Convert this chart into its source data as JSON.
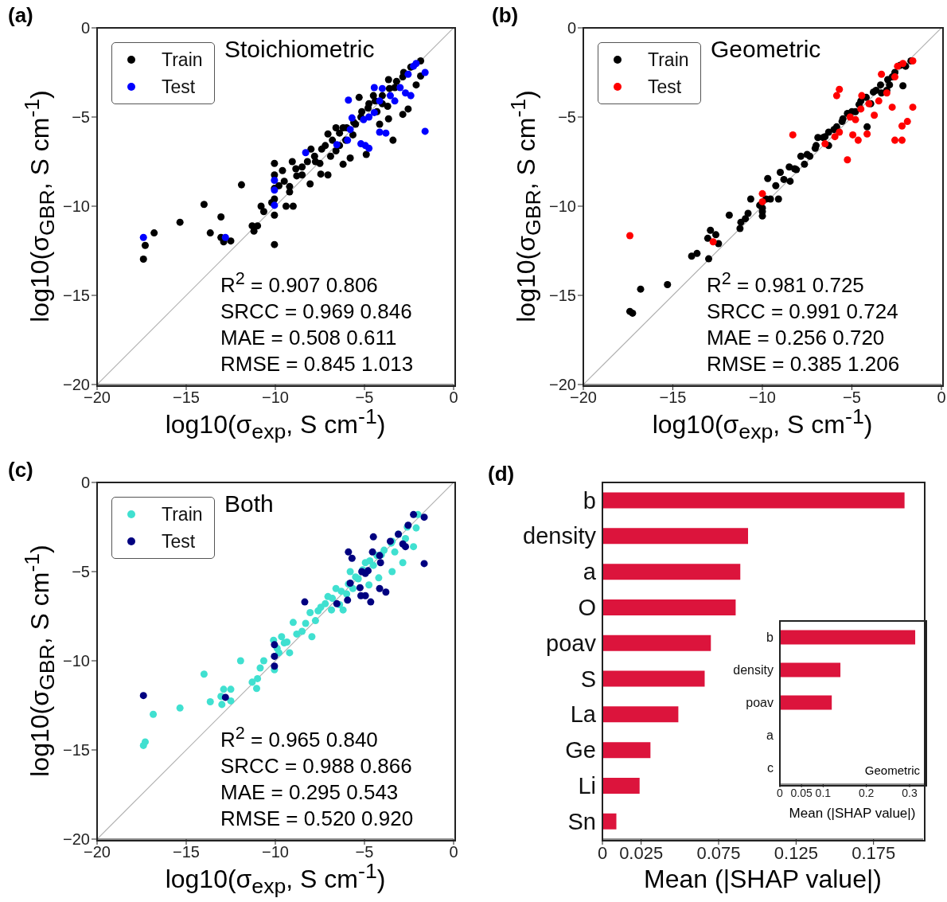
{
  "chart_data": [
    {
      "type": "scatter",
      "title": "(a)",
      "xlabel": "log10(σ$_{exp}$, S cm$^{-1}$)",
      "ylabel": "log10(σ$_{GBR}$, S cm$^{-1}$)",
      "xlim": [
        -20,
        0
      ],
      "ylim": [
        -20,
        0
      ],
      "xticks": [
        -20,
        -15,
        -10,
        -5,
        0
      ],
      "yticks": [
        -20,
        -15,
        -10,
        -5,
        0
      ],
      "legend": "top left",
      "annotations": [
        "Stoichiometric",
        "R$^{2}$ = 0.907 0.806",
        "SRCC = 0.969 0.846",
        "MAE = 0.508 0.611",
        "RMSE = 0.845 1.013"
      ],
      "series": [
        {
          "type": "line",
          "color": "#b0b0b0",
          "x": [
            -20,
            0
          ],
          "values": [
            -20,
            0
          ]
        },
        {
          "name": "Train",
          "color": "#000000",
          "marker": "circle",
          "x": [
            -17.4,
            -17.3,
            -16.8,
            -15.35,
            -14.0,
            -13.65,
            -13.05,
            -13.05,
            -12.9,
            -12.5,
            -11.9,
            -11.3,
            -11.0,
            -11.2,
            -10.8,
            -10.65,
            -10.2,
            -10.05,
            -10.05,
            -10.05,
            -10.05,
            -10.05,
            -10.05,
            -9.6,
            -9.8,
            -9.4,
            -9.0,
            -9.2,
            -9.05,
            -8.85,
            -8.5,
            -8.05,
            -8.2,
            -8.0,
            -7.75,
            -7.45,
            -7.05,
            -7.4,
            -7.05,
            -6.9,
            -6.6,
            -6.4,
            -6.2,
            -6.05,
            -5.8,
            -6.2,
            -5.65,
            -5.5,
            -5.3,
            -5.15,
            -4.9,
            -4.75,
            -4.5,
            -4.3,
            -4.15,
            -4.0,
            -3.7,
            -3.65,
            -3.4,
            -3.65,
            -3.3,
            -2.85,
            -2.55,
            -2.85,
            -2.1,
            -1.85,
            -1.85,
            -8.5,
            -7.8,
            -7.2,
            -6.8,
            -6.4,
            -6.0,
            -5.6,
            -5.2,
            -4.8,
            -4.4,
            -4.0,
            -3.6,
            -3.2,
            -2.8,
            -2.4,
            -9.5,
            -9.2,
            -8.8,
            -7.5,
            -6.6
          ],
          "values": [
            -12.97,
            -12.2,
            -11.5,
            -10.9,
            -9.9,
            -11.5,
            -10.6,
            -11.75,
            -12.0,
            -11.95,
            -8.8,
            -11.1,
            -11.1,
            -11.4,
            -10.0,
            -10.3,
            -9.8,
            -7.6,
            -8.25,
            -9.0,
            -9.6,
            -10.5,
            -12.15,
            -8.0,
            -8.85,
            -10.0,
            -10.0,
            -9.2,
            -7.5,
            -7.9,
            -8.25,
            -8.75,
            -7.5,
            -6.8,
            -7.5,
            -8.2,
            -8.25,
            -6.8,
            -5.95,
            -7.2,
            -5.6,
            -6.6,
            -7.65,
            -6.3,
            -7.3,
            -5.6,
            -6.0,
            -5.4,
            -3.9,
            -4.7,
            -7.1,
            -4.25,
            -3.8,
            -4.7,
            -5.4,
            -4.25,
            -4.4,
            -5.1,
            -6.3,
            -2.9,
            -3.35,
            -4.85,
            -4.55,
            -2.75,
            -3.2,
            -1.85,
            -2.7,
            -7.8,
            -7.2,
            -6.6,
            -6.3,
            -5.9,
            -5.6,
            -5.3,
            -5.0,
            -4.5,
            -4.1,
            -3.8,
            -3.4,
            -3.0,
            -2.5,
            -2.2,
            -8.6,
            -8.9,
            -8.3,
            -7.6,
            -6.9
          ]
        },
        {
          "name": "Test",
          "color": "#0000ff",
          "marker": "circle",
          "x": [
            -17.4,
            -12.8,
            -10.05,
            -10.05,
            -10.05,
            -8.3,
            -6.55,
            -5.95,
            -5.9,
            -5.7,
            -5.8,
            -5.05,
            -5.2,
            -4.95,
            -4.75,
            -4.15,
            -3.8,
            -4.45,
            -4.15,
            -4.0,
            -3.55,
            -3.3,
            -3.0,
            -2.7,
            -2.55,
            -2.25,
            -2.1,
            -1.6,
            -1.6,
            -2.4,
            -4.75,
            -4.45
          ],
          "values": [
            -11.75,
            -11.75,
            -8.55,
            -9.1,
            -9.95,
            -7.0,
            -6.55,
            -6.3,
            -4.05,
            -5.05,
            -5.7,
            -5.15,
            -6.5,
            -6.6,
            -6.75,
            -5.85,
            -5.9,
            -3.35,
            -4.1,
            -3.4,
            -3.8,
            -4.1,
            -3.35,
            -3.65,
            -2.6,
            -2.15,
            -2.0,
            -2.5,
            -5.8,
            -3.8,
            -5.0,
            -4.75
          ]
        }
      ]
    },
    {
      "type": "scatter",
      "title": "(b)",
      "xlabel": "log10(σ$_{exp}$, S cm$^{-1}$)",
      "ylabel": "log10(σ$_{GBR}$, S cm$^{-1}$)",
      "xlim": [
        -20,
        0
      ],
      "ylim": [
        -20,
        0
      ],
      "xticks": [
        -20,
        -15,
        -10,
        -5,
        0
      ],
      "yticks": [
        -20,
        -15,
        -10,
        -5,
        0
      ],
      "legend": "top left",
      "annotations": [
        "Geometric",
        "R$^{2}$ = 0.981 0.725",
        "SRCC = 0.991 0.724",
        "MAE = 0.256 0.720",
        "RMSE = 0.385 1.206"
      ],
      "series": [
        {
          "type": "line",
          "color": "#b0b0b0",
          "x": [
            -20,
            0
          ],
          "values": [
            -20,
            0
          ]
        },
        {
          "name": "Train",
          "color": "#000000",
          "marker": "circle",
          "x": [
            -17.4,
            -17.25,
            -16.8,
            -15.3,
            -13.95,
            -13.65,
            -13.0,
            -13.05,
            -12.9,
            -12.6,
            -12.45,
            -11.85,
            -11.25,
            -11.2,
            -10.95,
            -10.8,
            -10.65,
            -10.15,
            -10.0,
            -9.7,
            -9.55,
            -9.25,
            -9.1,
            -9.0,
            -8.5,
            -8.45,
            -8.1,
            -7.85,
            -7.65,
            -7.35,
            -7.05,
            -6.9,
            -6.6,
            -6.3,
            -6.3,
            -5.85,
            -5.55,
            -5.25,
            -4.8,
            -4.5,
            -4.15,
            -3.95,
            -3.65,
            -3.35,
            -2.9,
            -2.75,
            -2.15,
            -2.0,
            -1.7,
            -3.05,
            -8.8,
            -8.2,
            -7.5,
            -7.0,
            -6.5,
            -6.0,
            -5.5,
            -5.0,
            -4.6,
            -4.2,
            -3.8,
            -3.4,
            -3.0,
            -2.6,
            -2.3,
            -9.8,
            -10.0,
            -10.0
          ],
          "values": [
            -15.9,
            -16.0,
            -14.65,
            -14.4,
            -12.8,
            -12.65,
            -12.95,
            -11.8,
            -11.35,
            -11.6,
            -12.1,
            -10.5,
            -11.25,
            -10.9,
            -10.7,
            -10.4,
            -9.6,
            -9.95,
            -10.55,
            -8.45,
            -9.6,
            -8.85,
            -9.6,
            -8.1,
            -7.8,
            -8.6,
            -7.95,
            -7.2,
            -7.65,
            -7.2,
            -6.75,
            -6.15,
            -6.15,
            -6.6,
            -5.85,
            -5.55,
            -5.25,
            -4.8,
            -4.7,
            -4.1,
            -5.55,
            -4.25,
            -3.5,
            -3.65,
            -3.2,
            -2.75,
            -3.25,
            -2.15,
            -1.85,
            -3.5,
            -8.5,
            -7.9,
            -7.1,
            -6.6,
            -6.1,
            -5.7,
            -5.1,
            -4.7,
            -4.3,
            -3.9,
            -3.6,
            -3.2,
            -2.9,
            -2.5,
            -2.1,
            -9.6,
            -10.3,
            -10.1
          ]
        },
        {
          "name": "Test",
          "color": "#ff0000",
          "marker": "circle",
          "x": [
            -17.4,
            -12.75,
            -10.0,
            -10.0,
            -8.3,
            -6.5,
            -5.95,
            -5.85,
            -5.7,
            -5.7,
            -5.25,
            -5.1,
            -4.95,
            -4.65,
            -4.5,
            -4.45,
            -4.15,
            -4.05,
            -3.75,
            -3.5,
            -3.35,
            -3.05,
            -2.75,
            -2.6,
            -2.2,
            -2.2,
            -1.9,
            -1.6,
            -2.45,
            -2.15,
            -1.6,
            -2.6,
            -4.8
          ],
          "values": [
            -11.65,
            -12.0,
            -9.3,
            -9.75,
            -6.0,
            -6.5,
            -6.1,
            -3.8,
            -3.45,
            -5.85,
            -7.4,
            -5.0,
            -6.0,
            -6.3,
            -4.55,
            -3.8,
            -5.95,
            -4.25,
            -4.9,
            -4.1,
            -2.6,
            -3.65,
            -4.45,
            -6.3,
            -6.3,
            -5.5,
            -5.25,
            -4.45,
            -2.15,
            -2.0,
            -1.85,
            -2.75,
            -5.15
          ]
        }
      ]
    },
    {
      "type": "scatter",
      "title": "(c)",
      "xlabel": "log10(σ$_{exp}$, S cm$^{-1}$)",
      "ylabel": "log10(σ$_{GBR}$, S cm$^{-1}$)",
      "xlim": [
        -20,
        0
      ],
      "ylim": [
        -20,
        0
      ],
      "xticks": [
        -20,
        -15,
        -10,
        -5,
        0
      ],
      "yticks": [
        -20,
        -15,
        -10,
        -5,
        0
      ],
      "legend": "top left",
      "annotations": [
        "Both",
        "R$^{2}$ = 0.965 0.840",
        "SRCC = 0.988 0.866",
        "MAE = 0.295 0.543",
        "RMSE = 0.520 0.920"
      ],
      "series": [
        {
          "type": "line",
          "color": "#b0b0b0",
          "x": [
            -20,
            0
          ],
          "values": [
            -20,
            0
          ]
        },
        {
          "name": "Train",
          "color": "#40e0d0",
          "marker": "circle",
          "x": [
            -17.4,
            -17.3,
            -16.85,
            -15.35,
            -14.0,
            -13.65,
            -13.05,
            -13.0,
            -12.9,
            -12.5,
            -12.5,
            -11.95,
            -11.3,
            -11.0,
            -11.05,
            -10.85,
            -10.65,
            -10.05,
            -10.1,
            -9.8,
            -9.65,
            -9.35,
            -9.2,
            -9.0,
            -8.8,
            -8.5,
            -7.95,
            -8.05,
            -7.75,
            -7.45,
            -7.05,
            -6.85,
            -6.6,
            -6.4,
            -6.2,
            -6.0,
            -5.8,
            -5.65,
            -5.35,
            -4.75,
            -4.95,
            -4.5,
            -4.2,
            -4.05,
            -3.45,
            -3.45,
            -2.85,
            -2.7,
            -2.1,
            -2.0,
            -2.25,
            -3.3,
            -8.3,
            -7.6,
            -7.2,
            -6.8,
            -6.3,
            -5.9,
            -5.5,
            -5.1,
            -4.7,
            -4.3,
            -3.9,
            -3.5,
            -3.1,
            -2.6,
            -9.5,
            -9.9
          ],
          "values": [
            -14.75,
            -14.55,
            -13.0,
            -12.65,
            -10.75,
            -12.3,
            -12.0,
            -12.45,
            -11.6,
            -11.6,
            -12.25,
            -10.0,
            -11.2,
            -11.0,
            -11.55,
            -10.4,
            -10.0,
            -10.5,
            -8.85,
            -9.55,
            -8.65,
            -8.95,
            -9.55,
            -7.85,
            -8.5,
            -8.35,
            -8.65,
            -7.3,
            -7.75,
            -7.0,
            -6.4,
            -7.15,
            -5.95,
            -6.85,
            -7.15,
            -6.25,
            -5.0,
            -5.95,
            -5.4,
            -5.75,
            -4.5,
            -4.65,
            -5.35,
            -4.05,
            -5.0,
            -3.3,
            -4.5,
            -3.15,
            -2.55,
            -1.8,
            -3.6,
            -3.9,
            -7.9,
            -7.2,
            -6.8,
            -6.5,
            -6.1,
            -5.7,
            -5.3,
            -4.9,
            -4.4,
            -4.1,
            -3.8,
            -3.4,
            -2.9,
            -2.5,
            -9.0,
            -9.3
          ]
        },
        {
          "name": "Test",
          "color": "#000080",
          "marker": "circle",
          "x": [
            -17.4,
            -12.8,
            -10.05,
            -10.05,
            -10.05,
            -8.35,
            -6.55,
            -5.95,
            -5.9,
            -5.7,
            -5.8,
            -5.2,
            -4.95,
            -4.65,
            -5.25,
            -4.15,
            -3.8,
            -5.15,
            -4.8,
            -4.5,
            -4.55,
            -4.1,
            -4.15,
            -3.55,
            -3.1,
            -2.7,
            -2.55,
            -2.25,
            -1.65,
            -1.65,
            -2.85,
            -4.95
          ],
          "values": [
            -11.95,
            -12.05,
            -9.1,
            -9.75,
            -10.3,
            -6.7,
            -6.8,
            -6.6,
            -3.9,
            -4.25,
            -5.65,
            -6.35,
            -6.35,
            -6.7,
            -5.9,
            -5.95,
            -6.15,
            -5.0,
            -4.95,
            -3.05,
            -3.9,
            -4.5,
            -4.1,
            -3.3,
            -2.9,
            -3.6,
            -2.4,
            -1.8,
            -1.95,
            -4.55,
            -3.45,
            -5.1
          ]
        }
      ]
    },
    {
      "type": "bar",
      "title": "(d)",
      "orientation": "horizontal",
      "xlabel": "Mean (|SHAP value|)",
      "categories": [
        "b",
        "density",
        "a",
        "O",
        "poav",
        "S",
        "La",
        "Ge",
        "Li",
        "Sn"
      ],
      "values": [
        0.195,
        0.094,
        0.089,
        0.086,
        0.07,
        0.066,
        0.049,
        0.031,
        0.024,
        0.009
      ],
      "color": "#dc143c",
      "xlim": [
        0,
        0.207
      ],
      "xticks": [
        0,
        0.025,
        0.075,
        0.125,
        0.175
      ]
    },
    {
      "type": "bar",
      "orientation": "horizontal",
      "xlabel": "Mean (|SHAP value|)",
      "categories": [
        "b",
        "density",
        "poav",
        "a",
        "c"
      ],
      "values": [
        0.313,
        0.14,
        0.12,
        0,
        0
      ],
      "color": "#dc143c",
      "xlim": [
        0,
        0.335
      ],
      "xticks": [
        0,
        0.05,
        0.1,
        0.2,
        0.3
      ],
      "annotations": [
        "Geometric"
      ]
    }
  ]
}
